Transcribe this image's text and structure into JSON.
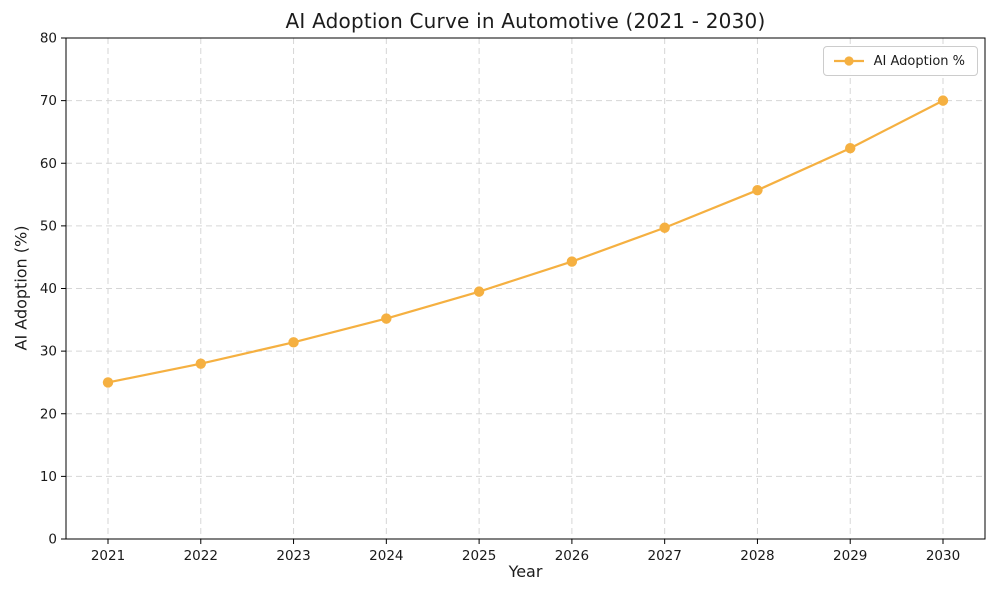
{
  "chart_data": {
    "type": "line",
    "title": "AI Adoption Curve in Automotive (2021 - 2030)",
    "xlabel": "Year",
    "ylabel": "AI Adoption (%)",
    "x": [
      2021,
      2022,
      2023,
      2024,
      2025,
      2026,
      2027,
      2028,
      2029,
      2030
    ],
    "series": [
      {
        "name": "AI Adoption %",
        "values": [
          25.0,
          28.0,
          31.4,
          35.2,
          39.5,
          44.3,
          49.7,
          55.7,
          62.4,
          70.0
        ],
        "color": "#F5B041",
        "marker": "circle",
        "line_style": "solid"
      }
    ],
    "ylim": [
      0,
      80
    ],
    "yticks": [
      0,
      10,
      20,
      30,
      40,
      50,
      60,
      70,
      80
    ],
    "grid": true,
    "grid_style": "dashed",
    "legend_position": "upper-right"
  },
  "colors": {
    "line": "#F5B041",
    "grid": "#d6d6d6",
    "axis": "#000000",
    "text": "#1a1a1a",
    "legend_border": "#cccccc",
    "background": "#ffffff"
  }
}
